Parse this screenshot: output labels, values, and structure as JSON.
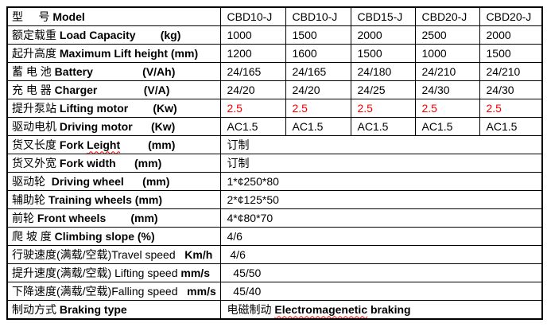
{
  "page": {
    "background_color": "#ffffff",
    "text_color": "#000000",
    "accent_red": "#ff0000",
    "border_color": "#000000"
  },
  "table": {
    "label_column_width": 268,
    "value_column_widths": [
      82,
      82,
      81,
      81,
      79
    ],
    "rows": [
      {
        "name": "model",
        "label": [
          {
            "t": "型     号 ",
            "b": false
          },
          {
            "t": "Model",
            "b": true
          }
        ],
        "cells": [
          "CBD10-J",
          "CBD10-J",
          "CBD15-J",
          "CBD20-J",
          "CBD20-J"
        ]
      },
      {
        "name": "load-capacity",
        "label": [
          {
            "t": "额定载重 ",
            "b": false
          },
          {
            "t": "Load Capacity",
            "b": true
          },
          {
            "t": "        (kg)",
            "b": true
          }
        ],
        "cells": [
          "1000",
          "1500",
          "2000",
          "2500",
          "2000"
        ]
      },
      {
        "name": "max-lift-height",
        "label": [
          {
            "t": "起升高度 ",
            "b": false
          },
          {
            "t": "Maximum Lift height (mm)",
            "b": true
          }
        ],
        "cells": [
          "1200",
          "1600",
          "1500",
          "1000",
          "1500"
        ]
      },
      {
        "name": "battery",
        "label": [
          {
            "t": "蓄 电 池 ",
            "b": false
          },
          {
            "t": "Battery",
            "b": true
          },
          {
            "t": "                (V/Ah)",
            "b": true
          }
        ],
        "cells": [
          "24/165",
          "24/165",
          "24/180",
          "24/210",
          "24/210"
        ]
      },
      {
        "name": "charger",
        "label": [
          {
            "t": "充 电 器 ",
            "b": false
          },
          {
            "t": "Charger",
            "b": true
          },
          {
            "t": "               (V/A)",
            "b": true
          }
        ],
        "cells": [
          "24/20",
          "24/20",
          "24/25",
          "24/30",
          "24/30"
        ]
      },
      {
        "name": "lifting-motor",
        "label": [
          {
            "t": "提升泵站 ",
            "b": false
          },
          {
            "t": "Lifting motor",
            "b": true
          },
          {
            "t": "        (Kw)",
            "b": true
          }
        ],
        "cells": [
          "2.5",
          "2.5",
          "2.5",
          "2.5",
          "2.5"
        ],
        "red": true
      },
      {
        "name": "driving-motor",
        "label": [
          {
            "t": "驱动电机 ",
            "b": false
          },
          {
            "t": "Driving motor",
            "b": true
          },
          {
            "t": "      (Kw)",
            "b": true
          }
        ],
        "cells": [
          "AC1.5",
          "AC1.5",
          "AC1.5",
          "AC1.5",
          "AC1.5"
        ]
      },
      {
        "name": "fork-length",
        "label": [
          {
            "t": "货叉长度 ",
            "b": false
          },
          {
            "t": "Fork ",
            "b": true
          },
          {
            "t": "Leight",
            "b": true,
            "wavy": true
          },
          {
            "t": "         (mm)",
            "b": true
          }
        ],
        "span": [
          {
            "t": "订制",
            "b": false
          }
        ]
      },
      {
        "name": "fork-width",
        "label": [
          {
            "t": "货叉外宽 ",
            "b": false
          },
          {
            "t": "Fork width",
            "b": true
          },
          {
            "t": "      (mm)",
            "b": true
          }
        ],
        "span": [
          {
            "t": "订制",
            "b": false
          }
        ]
      },
      {
        "name": "driving-wheel",
        "label": [
          {
            "t": "驱动轮  ",
            "b": false
          },
          {
            "t": "Driving wheel",
            "b": true
          },
          {
            "t": "      (mm)",
            "b": true
          }
        ],
        "span": [
          {
            "t": "1*¢250*80",
            "b": false
          }
        ]
      },
      {
        "name": "training-wheels",
        "label": [
          {
            "t": "辅助轮 ",
            "b": false
          },
          {
            "t": "Training wheels (mm)",
            "b": true
          }
        ],
        "span": [
          {
            "t": "2*¢125*50",
            "b": false
          }
        ]
      },
      {
        "name": "front-wheels",
        "label": [
          {
            "t": "前轮 ",
            "b": false
          },
          {
            "t": "Front wheels",
            "b": true
          },
          {
            "t": "        (mm)",
            "b": true
          }
        ],
        "span": [
          {
            "t": "4*¢80*70",
            "b": false
          }
        ]
      },
      {
        "name": "climbing-slope",
        "label": [
          {
            "t": "爬 坡 度 ",
            "b": false
          },
          {
            "t": "Climbing slope (%)",
            "b": true
          }
        ],
        "span": [
          {
            "t": "4/6",
            "b": false
          }
        ]
      },
      {
        "name": "travel-speed",
        "label": [
          {
            "t": "行驶速度(满载/空载)",
            "b": false
          },
          {
            "t": "Travel speed",
            "b": false
          },
          {
            "t": "   Km/h",
            "b": true
          }
        ],
        "span": [
          {
            "t": " 4/6",
            "b": false
          }
        ]
      },
      {
        "name": "lifting-speed",
        "label": [
          {
            "t": "提升速度(满载/空载) ",
            "b": false
          },
          {
            "t": "Lifting speed ",
            "b": false
          },
          {
            "t": "mm/s",
            "b": true
          }
        ],
        "span": [
          {
            "t": "  45/50",
            "b": false
          }
        ]
      },
      {
        "name": "falling-speed",
        "label": [
          {
            "t": "下降速度(满载/空载)",
            "b": false
          },
          {
            "t": "Falling speed ",
            "b": false
          },
          {
            "t": "  mm/s",
            "b": true
          }
        ],
        "span": [
          {
            "t": "  45/40",
            "b": false
          }
        ]
      },
      {
        "name": "braking-type",
        "label": [
          {
            "t": "制动方式 ",
            "b": false
          },
          {
            "t": "Braking type",
            "b": true
          }
        ],
        "span": [
          {
            "t": "电磁制动 ",
            "b": false
          },
          {
            "t": "Electromagenetic",
            "b": true,
            "wavy": true
          },
          {
            "t": " braking",
            "b": true
          }
        ]
      }
    ]
  }
}
